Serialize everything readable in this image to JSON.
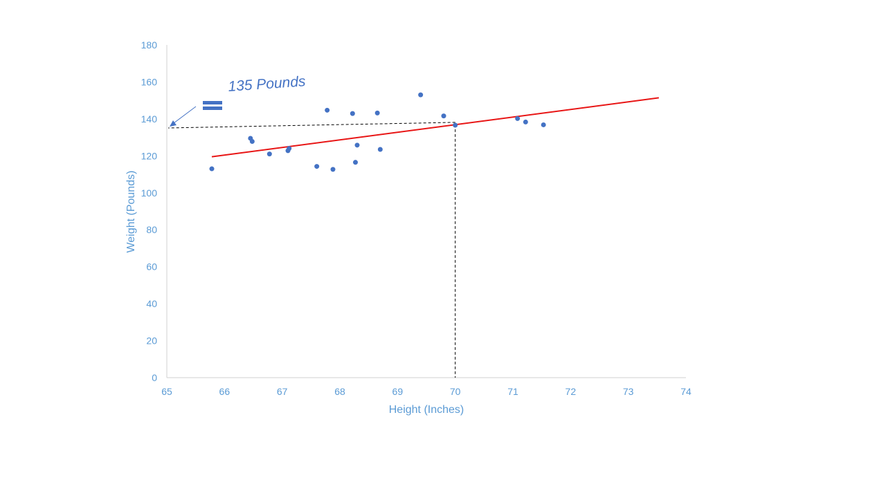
{
  "chart_data": {
    "type": "scatter",
    "xlabel": "Height (Inches)",
    "ylabel": "Weight (Pounds)",
    "xlim": [
      65,
      74
    ],
    "ylim": [
      0,
      180
    ],
    "x_ticks": [
      65,
      66,
      67,
      68,
      69,
      70,
      71,
      72,
      73,
      74
    ],
    "y_ticks": [
      0,
      20,
      40,
      60,
      80,
      100,
      120,
      140,
      160,
      180
    ],
    "grid": false,
    "points": [
      {
        "x": 65.78,
        "y": 113.0
      },
      {
        "x": 66.45,
        "y": 129.5
      },
      {
        "x": 66.48,
        "y": 127.8
      },
      {
        "x": 66.78,
        "y": 121.0
      },
      {
        "x": 67.1,
        "y": 122.8
      },
      {
        "x": 67.12,
        "y": 124.0
      },
      {
        "x": 67.6,
        "y": 114.3
      },
      {
        "x": 67.78,
        "y": 144.7
      },
      {
        "x": 67.88,
        "y": 112.7
      },
      {
        "x": 68.22,
        "y": 142.9
      },
      {
        "x": 68.27,
        "y": 116.5
      },
      {
        "x": 68.3,
        "y": 125.8
      },
      {
        "x": 68.65,
        "y": 143.2
      },
      {
        "x": 68.7,
        "y": 123.5
      },
      {
        "x": 69.4,
        "y": 153.0
      },
      {
        "x": 69.8,
        "y": 141.6
      },
      {
        "x": 70.0,
        "y": 136.6
      },
      {
        "x": 71.08,
        "y": 140.2
      },
      {
        "x": 71.22,
        "y": 138.3
      },
      {
        "x": 71.53,
        "y": 136.8
      }
    ],
    "trendline": {
      "x": [
        65.78,
        73.53
      ],
      "y": [
        119.5,
        151.4
      ],
      "color": "#e81515"
    },
    "point_color": "#4472c4",
    "prediction": {
      "x": 70.0,
      "y": 137.0
    },
    "annotation": {
      "text": "135 Pounds",
      "equals_symbol": "="
    }
  }
}
